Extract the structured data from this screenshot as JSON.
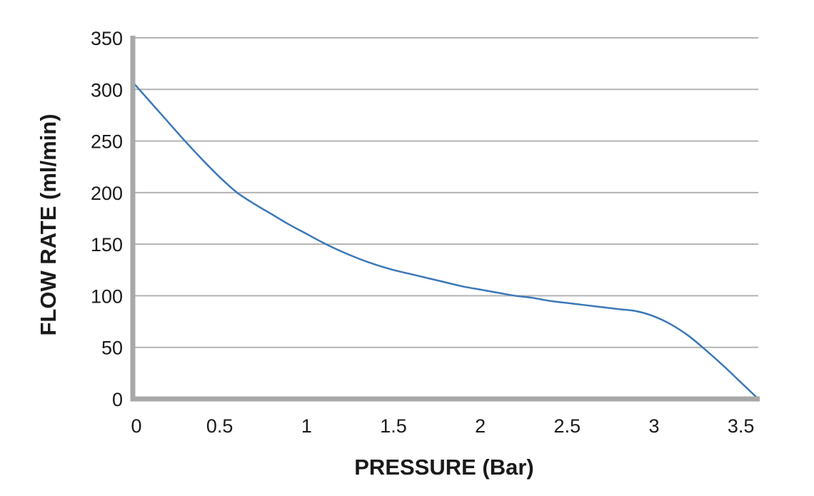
{
  "chart_data": {
    "type": "line",
    "title": "",
    "xlabel": "PRESSURE (Bar)",
    "ylabel": "FLOW RATE (ml/min)",
    "xlim": [
      0,
      3.6
    ],
    "ylim": [
      0,
      350
    ],
    "x_ticks": [
      0,
      0.5,
      1,
      1.5,
      2,
      2.5,
      3,
      3.5
    ],
    "x_tick_labels": [
      "0",
      "0.5",
      "1",
      "1.5",
      "2",
      "2.5",
      "3",
      "3.5"
    ],
    "y_ticks": [
      0,
      50,
      100,
      150,
      200,
      250,
      300,
      350
    ],
    "y_tick_labels": [
      "0",
      "50",
      "100",
      "150",
      "200",
      "250",
      "300",
      "350"
    ],
    "grid": "horizontal",
    "legend": "none",
    "colors": {
      "line": "#3b78b8",
      "grid": "#b3b3b3",
      "axis": "#a8a8a8",
      "text": "#1a1a1a"
    },
    "series": [
      {
        "x": [
          0,
          0.1,
          0.2,
          0.3,
          0.4,
          0.5,
          0.6,
          0.7,
          0.8,
          0.9,
          1.0,
          1.1,
          1.2,
          1.3,
          1.4,
          1.5,
          1.6,
          1.7,
          1.8,
          1.9,
          2.0,
          2.1,
          2.2,
          2.3,
          2.4,
          2.5,
          2.6,
          2.7,
          2.8,
          2.9,
          3.0,
          3.1,
          3.2,
          3.3,
          3.4,
          3.5,
          3.6
        ],
        "y": [
          307,
          288,
          269,
          250,
          232,
          215,
          200,
          189,
          179,
          169,
          160,
          151,
          143,
          136,
          130,
          125,
          121,
          117,
          113,
          109,
          106,
          103,
          100,
          98,
          95,
          93,
          91,
          89,
          87,
          85,
          80,
          72,
          61,
          47,
          32,
          16,
          0
        ]
      }
    ]
  }
}
